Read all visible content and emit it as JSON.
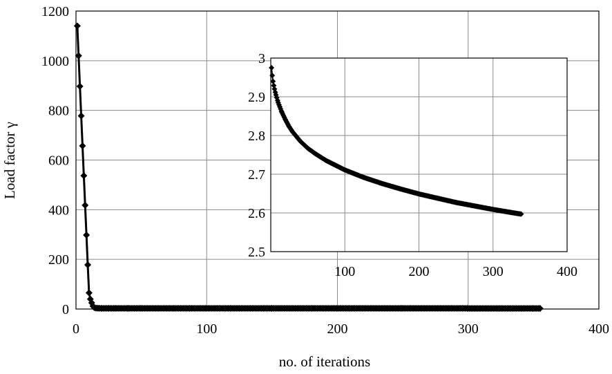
{
  "chart_data": [
    {
      "type": "line",
      "marker": "diamond",
      "xlabel": "no. of iterations",
      "ylabel": "Load factor γ",
      "xlim": [
        0,
        400
      ],
      "ylim": [
        0,
        1200
      ],
      "xticks": [
        "0",
        "100",
        "200",
        "300",
        "400"
      ],
      "yticks": [
        "0",
        "200",
        "400",
        "600",
        "800",
        "1000",
        "1200"
      ],
      "grid": true,
      "series": [
        {
          "x": [
            1,
            2,
            3,
            4,
            5,
            6,
            7,
            8,
            9,
            10,
            11,
            12,
            13,
            14,
            15,
            16,
            17,
            18,
            20,
            25,
            30,
            40,
            50,
            75,
            100,
            150,
            200,
            250,
            300,
            350,
            355
          ],
          "y": [
            1140,
            1020,
            897,
            778,
            657,
            537,
            418,
            298,
            178,
            65,
            40,
            25,
            12,
            6,
            4,
            3.5,
            3.2,
            3.0,
            2.9,
            2.85,
            2.8,
            2.77,
            2.75,
            2.72,
            2.7,
            2.68,
            2.65,
            2.63,
            2.61,
            2.6,
            2.6
          ]
        }
      ]
    },
    {
      "type": "line",
      "marker": "diamond",
      "inset": true,
      "xlim": [
        0,
        400
      ],
      "ylim": [
        2.5,
        3.0
      ],
      "xticks": [
        "100",
        "200",
        "300",
        "400"
      ],
      "yticks": [
        "2.5",
        "2.6",
        "2.7",
        "2.8",
        "2.9",
        "3"
      ],
      "grid": true,
      "series": [
        {
          "x": [
            1,
            2,
            3,
            5,
            7,
            10,
            15,
            20,
            25,
            30,
            40,
            50,
            60,
            75,
            100,
            125,
            150,
            175,
            200,
            225,
            250,
            275,
            300,
            325,
            338
          ],
          "y": [
            2.975,
            2.955,
            2.94,
            2.92,
            2.905,
            2.885,
            2.86,
            2.84,
            2.822,
            2.808,
            2.785,
            2.767,
            2.753,
            2.735,
            2.711,
            2.692,
            2.676,
            2.662,
            2.649,
            2.638,
            2.627,
            2.618,
            2.609,
            2.601,
            2.597
          ]
        }
      ]
    }
  ]
}
